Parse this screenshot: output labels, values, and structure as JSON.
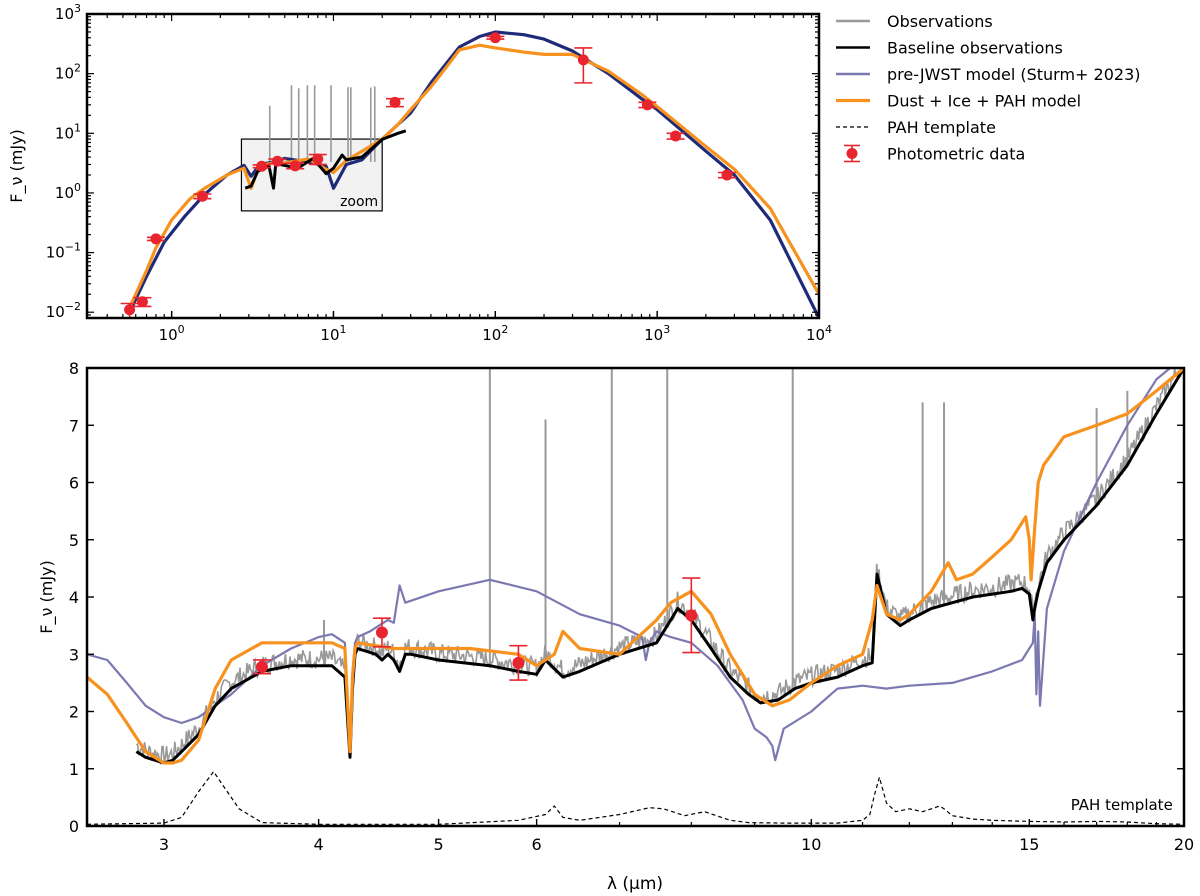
{
  "chart_data": [
    {
      "type": "line",
      "panel": "top",
      "xscale": "log",
      "yscale": "log",
      "xlim": [
        0.3,
        10000
      ],
      "ylim": [
        0.008,
        1000
      ],
      "xlabel": "",
      "ylabel": "F_ν (mJy)",
      "x_ticks": [
        1,
        10,
        100,
        1000,
        10000
      ],
      "x_tick_labels": [
        [
          "10",
          "0"
        ],
        [
          "10",
          "1"
        ],
        [
          "10",
          "2"
        ],
        [
          "10",
          "3"
        ],
        [
          "10",
          "4"
        ]
      ],
      "y_ticks": [
        0.01,
        0.1,
        1,
        10,
        100,
        1000
      ],
      "y_tick_labels": [
        [
          "10",
          "−2"
        ],
        [
          "10",
          "−1"
        ],
        [
          "10",
          "0"
        ],
        [
          "10",
          "1"
        ],
        [
          "10",
          "2"
        ],
        [
          "10",
          "3"
        ]
      ],
      "zoom_box": {
        "x": [
          2.7,
          20
        ],
        "y": [
          0.5,
          8
        ],
        "label": "zoom"
      },
      "legend": {
        "placement": "outside-right",
        "entries": [
          {
            "label": "Observations",
            "style": "line",
            "color": "#999999"
          },
          {
            "label": "Baseline observations",
            "style": "line",
            "color": "#000000"
          },
          {
            "label": "pre-JWST model (Sturm+ 2023)",
            "style": "line",
            "color": "#7b79b0"
          },
          {
            "label": "Dust + Ice + PAH model",
            "style": "line",
            "color": "#f7921e"
          },
          {
            "label": "PAH template",
            "style": "dashed",
            "color": "#000000"
          },
          {
            "label": "Photometric data",
            "style": "errorbar",
            "color": "#e8252e"
          }
        ]
      },
      "series": [
        {
          "name": "pre-JWST model (Sturm+ 2023)",
          "color": "#1f2a78",
          "x": [
            0.55,
            0.7,
            0.9,
            1.2,
            1.6,
            2.2,
            2.8,
            3.1,
            3.5,
            4.3,
            5,
            7,
            9,
            10,
            12,
            15,
            20,
            25,
            30,
            40,
            60,
            80,
            100,
            150,
            200,
            300,
            500,
            800,
            1000,
            2000,
            3000,
            5000,
            10000
          ],
          "y": [
            0.01,
            0.04,
            0.15,
            0.4,
            0.95,
            2.0,
            2.9,
            1.9,
            3.0,
            3.3,
            3.8,
            3.3,
            2.8,
            1.2,
            3.0,
            3.6,
            8,
            14,
            22,
            70,
            280,
            420,
            500,
            450,
            380,
            240,
            100,
            38,
            25,
            5,
            2,
            0.35,
            0.008
          ]
        },
        {
          "name": "Dust + Ice + PAH model",
          "color": "#f7921e",
          "x": [
            0.55,
            0.7,
            0.8,
            1.0,
            1.3,
            1.6,
            2.2,
            2.8,
            3.1,
            3.5,
            4.3,
            5,
            7,
            9,
            10,
            12,
            15,
            20,
            25,
            30,
            40,
            50,
            60,
            80,
            100,
            150,
            200,
            300,
            500,
            800,
            1000,
            2000,
            3000,
            5000,
            10000
          ],
          "y": [
            0.012,
            0.05,
            0.12,
            0.35,
            0.8,
            1.2,
            2.0,
            2.6,
            1.2,
            2.9,
            3.2,
            3.2,
            3.7,
            2.5,
            2.2,
            3.5,
            5.0,
            8,
            14,
            25,
            60,
            130,
            250,
            300,
            270,
            230,
            210,
            210,
            110,
            45,
            28,
            6,
            2.5,
            0.55,
            0.02
          ]
        },
        {
          "name": "Baseline observations",
          "color": "#000000",
          "x": [
            2.85,
            3.1,
            3.4,
            4.0,
            4.26,
            4.4,
            5,
            6,
            7.5,
            9,
            10,
            11.3,
            12,
            15,
            20,
            25,
            28
          ],
          "y": [
            1.2,
            1.3,
            2.3,
            2.8,
            1.2,
            3.1,
            2.9,
            2.6,
            3.8,
            2.1,
            2.6,
            4.3,
            3.6,
            4.0,
            7.9,
            10,
            11
          ]
        }
      ],
      "photometry": {
        "x": [
          0.55,
          0.66,
          0.8,
          1.55,
          3.6,
          4.5,
          5.8,
          8,
          24,
          100,
          350,
          870,
          1300,
          2700
        ],
        "y": [
          0.011,
          0.015,
          0.17,
          0.88,
          2.8,
          3.4,
          2.85,
          3.7,
          33,
          400,
          170,
          30,
          9,
          2
        ],
        "y_err": [
          [
            0.003,
            0.0025,
            0.01,
            0.08,
            0.15,
            0.3,
            0.3,
            0.7,
            5,
            20,
            100,
            3,
            1,
            0.2
          ],
          [
            0.003,
            0.0025,
            0.01,
            0.08,
            0.15,
            0.3,
            0.3,
            0.7,
            5,
            20,
            100,
            3,
            1,
            0.2
          ]
        ]
      }
    },
    {
      "type": "line",
      "panel": "bottom",
      "xscale": "log",
      "yscale": "linear",
      "xlim": [
        2.6,
        20
      ],
      "ylim": [
        0,
        8
      ],
      "xlabel": "λ (μm)",
      "ylabel": "F_ν (mJy)",
      "x_ticks": [
        3,
        4,
        5,
        6,
        10,
        15,
        20
      ],
      "x_tick_labels": [
        "3",
        "4",
        "5",
        "6",
        "10",
        "15",
        "20"
      ],
      "y_ticks": [
        0,
        1,
        2,
        3,
        4,
        5,
        6,
        7,
        8
      ],
      "y_tick_labels": [
        "0",
        "1",
        "2",
        "3",
        "4",
        "5",
        "6",
        "7",
        "8"
      ],
      "annotation": "PAH template",
      "series": [
        {
          "name": "pre-JWST model (Sturm+ 2023)",
          "color": "#7b79b0",
          "x": [
            2.6,
            2.7,
            2.8,
            2.9,
            3.0,
            3.1,
            3.2,
            3.4,
            3.6,
            3.8,
            4.0,
            4.1,
            4.2,
            4.24,
            4.26,
            4.28,
            4.3,
            4.4,
            4.55,
            4.6,
            4.65,
            4.7,
            5.0,
            5.5,
            6.0,
            6.5,
            7.0,
            7.3,
            7.35,
            7.4,
            7.5,
            7.7,
            8.0,
            8.4,
            8.8,
            9.0,
            9.2,
            9.3,
            9.35,
            9.5,
            10.0,
            10.5,
            11.0,
            11.5,
            12.0,
            13.0,
            14.0,
            14.8,
            15.0,
            15.1,
            15.15,
            15.2,
            15.25,
            15.3,
            15.5,
            16.0,
            17.0,
            18.0,
            19.0,
            20.0
          ],
          "y": [
            3.0,
            2.9,
            2.5,
            2.1,
            1.9,
            1.8,
            1.9,
            2.3,
            2.8,
            3.1,
            3.3,
            3.35,
            3.2,
            1.3,
            2.7,
            3.2,
            3.3,
            3.4,
            3.6,
            3.55,
            4.2,
            3.9,
            4.1,
            4.3,
            4.1,
            3.7,
            3.5,
            3.3,
            2.9,
            3.2,
            3.4,
            3.3,
            3.2,
            2.8,
            2.2,
            1.7,
            1.55,
            1.4,
            1.15,
            1.7,
            2.0,
            2.4,
            2.45,
            2.4,
            2.45,
            2.5,
            2.7,
            2.9,
            3.1,
            3.2,
            3.7,
            2.3,
            3.4,
            2.1,
            3.8,
            4.8,
            6.0,
            7.0,
            7.8,
            8.2
          ]
        },
        {
          "name": "Baseline observations",
          "color": "#000000",
          "x": [
            2.85,
            2.9,
            3.0,
            3.05,
            3.1,
            3.2,
            3.3,
            3.4,
            3.6,
            3.8,
            4.0,
            4.1,
            4.2,
            4.24,
            4.26,
            4.28,
            4.3,
            4.45,
            4.5,
            4.55,
            4.6,
            4.65,
            4.7,
            4.75,
            5.0,
            5.5,
            5.8,
            6.0,
            6.1,
            6.3,
            6.5,
            7.0,
            7.5,
            7.7,
            7.8,
            8.0,
            8.3,
            8.6,
            8.9,
            9.1,
            9.4,
            9.7,
            10.0,
            10.5,
            11.0,
            11.2,
            11.3,
            11.5,
            11.8,
            12.0,
            12.5,
            13.0,
            13.5,
            14.0,
            14.5,
            14.8,
            15.0,
            15.1,
            15.15,
            15.25,
            15.5,
            16.0,
            17.0,
            18.0,
            19.0,
            20.0
          ],
          "y": [
            1.3,
            1.2,
            1.1,
            1.15,
            1.3,
            1.6,
            2.1,
            2.4,
            2.7,
            2.8,
            2.8,
            2.8,
            2.6,
            1.2,
            2.4,
            3.0,
            3.1,
            3.0,
            2.9,
            3.0,
            2.9,
            2.7,
            3.0,
            3.0,
            2.9,
            2.8,
            2.7,
            2.65,
            2.9,
            2.6,
            2.7,
            3.0,
            3.2,
            3.6,
            3.8,
            3.6,
            3.1,
            2.6,
            2.3,
            2.15,
            2.2,
            2.4,
            2.5,
            2.6,
            2.8,
            2.85,
            4.4,
            3.7,
            3.5,
            3.6,
            3.8,
            3.9,
            4.0,
            4.05,
            4.1,
            4.15,
            4.05,
            3.6,
            3.8,
            4.1,
            4.6,
            5.0,
            5.6,
            6.3,
            7.2,
            8.0
          ]
        },
        {
          "name": "Dust + Ice + PAH model",
          "color": "#f7921e",
          "x": [
            2.6,
            2.7,
            2.8,
            2.9,
            3.0,
            3.05,
            3.1,
            3.2,
            3.3,
            3.4,
            3.6,
            3.8,
            4.0,
            4.1,
            4.2,
            4.24,
            4.26,
            4.28,
            4.3,
            4.6,
            5.0,
            5.3,
            5.8,
            6.0,
            6.2,
            6.3,
            6.5,
            7.0,
            7.5,
            7.7,
            8.0,
            8.3,
            8.6,
            9.0,
            9.3,
            9.6,
            10.0,
            10.5,
            11.0,
            11.2,
            11.3,
            11.5,
            11.8,
            12.0,
            12.5,
            12.9,
            13.1,
            13.5,
            14.0,
            14.5,
            14.9,
            15.0,
            15.05,
            15.15,
            15.25,
            15.4,
            16.0,
            17.0,
            18.0,
            19.0,
            20.0
          ],
          "y": [
            2.6,
            2.3,
            1.8,
            1.3,
            1.1,
            1.1,
            1.15,
            1.5,
            2.4,
            2.9,
            3.2,
            3.2,
            3.2,
            3.2,
            3.1,
            1.3,
            2.6,
            3.1,
            3.2,
            3.1,
            3.1,
            3.1,
            3.0,
            2.8,
            3.0,
            3.4,
            3.1,
            3.0,
            3.6,
            3.9,
            4.1,
            3.7,
            3.0,
            2.3,
            2.1,
            2.2,
            2.5,
            2.8,
            3.0,
            3.6,
            4.2,
            3.7,
            3.6,
            3.7,
            4.1,
            4.6,
            4.3,
            4.4,
            4.7,
            5.0,
            5.4,
            5.0,
            4.3,
            5.2,
            6.0,
            6.3,
            6.8,
            7.0,
            7.2,
            7.6,
            8.0
          ]
        },
        {
          "name": "PAH template",
          "color": "#000000",
          "dashed": true,
          "x": [
            2.6,
            3.0,
            3.1,
            3.2,
            3.29,
            3.35,
            3.45,
            3.6,
            4.0,
            5.0,
            5.8,
            6.1,
            6.2,
            6.3,
            6.5,
            7.0,
            7.4,
            7.6,
            7.9,
            8.2,
            8.6,
            8.9,
            9.5,
            10.5,
            11.0,
            11.15,
            11.25,
            11.35,
            11.5,
            11.7,
            12.0,
            12.3,
            12.7,
            12.8,
            13.0,
            13.5,
            14.0,
            15.0,
            16.0,
            17.0,
            18.0,
            19.0,
            20.0
          ],
          "y": [
            0.03,
            0.05,
            0.15,
            0.6,
            0.95,
            0.7,
            0.3,
            0.06,
            0.03,
            0.03,
            0.1,
            0.2,
            0.35,
            0.15,
            0.1,
            0.2,
            0.32,
            0.3,
            0.18,
            0.25,
            0.1,
            0.06,
            0.05,
            0.05,
            0.1,
            0.2,
            0.55,
            0.85,
            0.4,
            0.25,
            0.3,
            0.25,
            0.35,
            0.3,
            0.18,
            0.12,
            0.1,
            0.08,
            0.07,
            0.08,
            0.07,
            0.04,
            0.03
          ]
        },
        {
          "name": "Observations",
          "color": "#999999",
          "role": "emission-lines",
          "x": [
            4.04,
            5.5,
            6.1,
            6.9,
            7.65,
            9.66,
            12.3,
            12.8,
            17.0,
            18.0
          ],
          "y": [
            3.6,
            8,
            7.1,
            8,
            8,
            8,
            7.4,
            7.4,
            7.3,
            7.6
          ]
        }
      ],
      "photometry": {
        "x": [
          3.6,
          4.5,
          5.8,
          8.0
        ],
        "y": [
          2.78,
          3.38,
          2.85,
          3.68
        ],
        "y_err": [
          [
            0.12,
            0.25,
            0.3,
            0.65
          ],
          [
            0.12,
            0.25,
            0.3,
            0.65
          ]
        ]
      }
    }
  ]
}
